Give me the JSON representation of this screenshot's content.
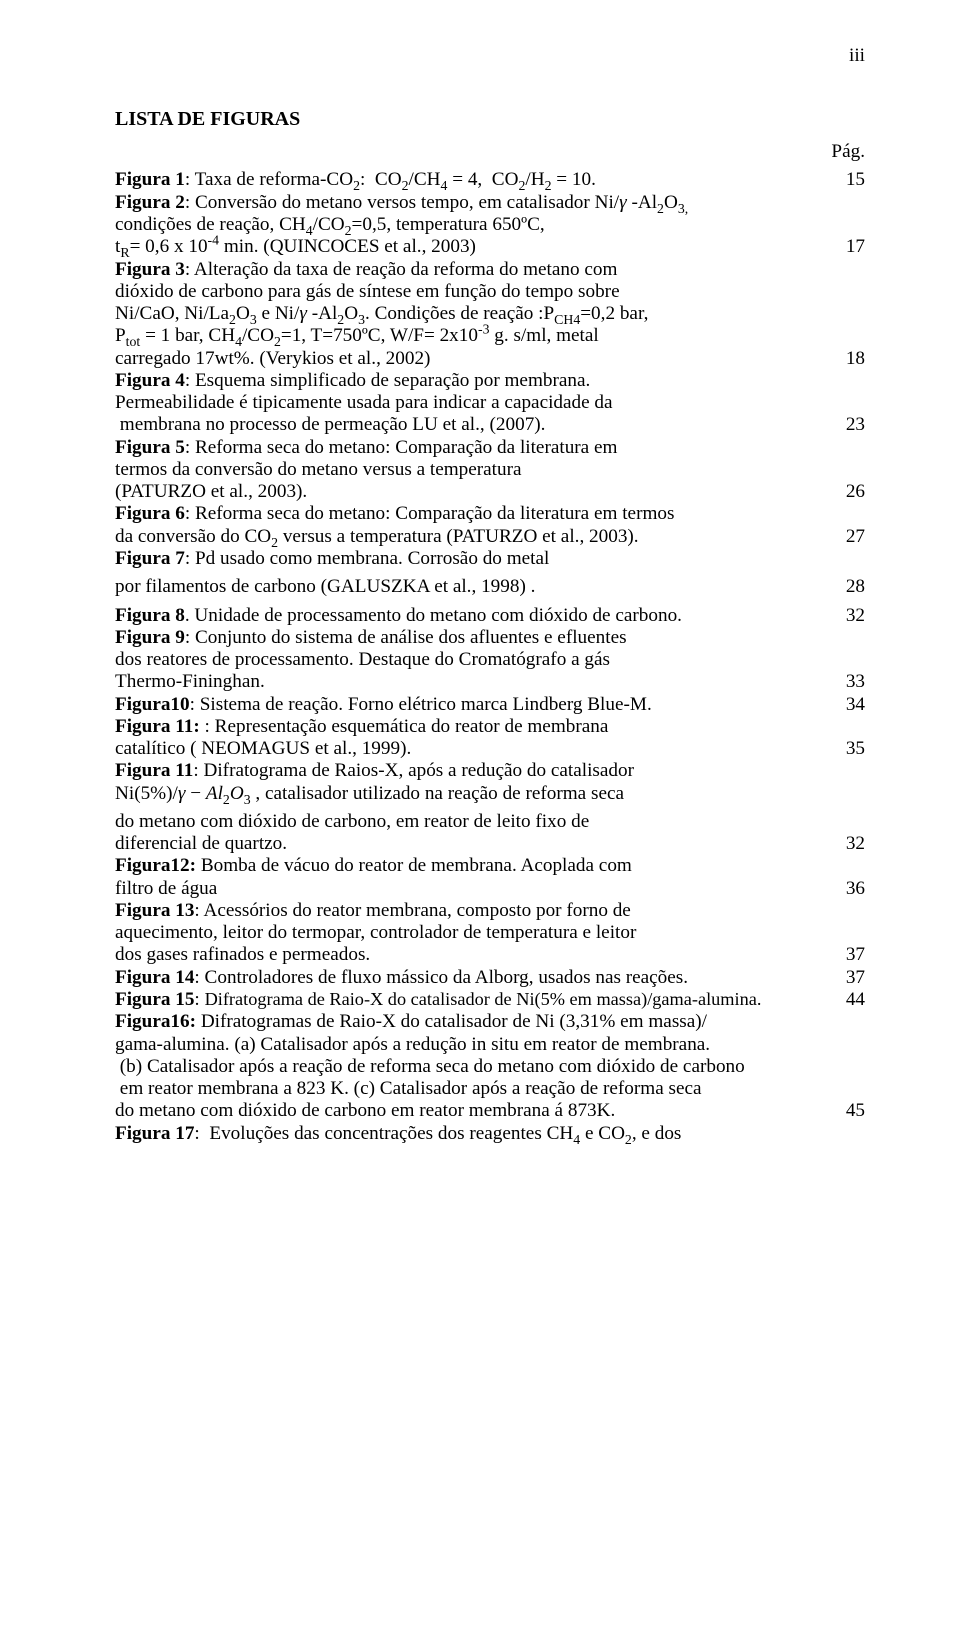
{
  "page_number_roman": "iii",
  "heading": "LISTA DE FIGURAS",
  "pag_label": "Pág.",
  "entries": [
    {
      "lines": [
        {
          "html": "<span class='bold'>Figura 1</span>: Taxa de reforma-CO<span class='sub'>2</span>:&nbsp; CO<span class='sub'>2</span>/CH<span class='sub'>4</span> = 4,&nbsp; CO<span class='sub'>2</span>/H<span class='sub'>2</span> = 10.",
          "page": "15"
        }
      ]
    },
    {
      "lines": [
        {
          "html": "<span class='bold'>Figura 2</span>: Conversão do metano versos tempo, em catalisador Ni/<span class='it'>&gamma;</span> -Al<span class='sub'>2</span>O<span class='sub'>3,</span>"
        },
        {
          "html": "condições de reação, CH<span class='sub'>4</span>/CO<span class='sub'>2</span>=0,5, temperatura 650ºC,"
        },
        {
          "html": "t<span class='sub'>R</span>= 0,6 x 10<span class='sup'>-4</span> min. (QUINCOCES et al., 2003)",
          "page": "17"
        }
      ]
    },
    {
      "lines": [
        {
          "html": "<span class='bold'>Figura 3</span>: Alteração da taxa de reação da reforma do metano com"
        },
        {
          "html": "dióxido de carbono para gás de síntese em função do tempo sobre"
        },
        {
          "html": "Ni/CaO, Ni/La<span class='sub'>2</span>O<span class='sub'>3</span> e Ni/<span class='it'>&gamma;</span> -Al<span class='sub'>2</span>O<span class='sub'>3</span>. Condições de reação :P<span class='sub'>CH4</span>=0,2 bar,"
        },
        {
          "html": "P<span class='sub'>tot</span> = 1 bar, CH<span class='sub'>4</span>/CO<span class='sub'>2</span>=1, T=750ºC, W/F= 2x10<span class='sup'>-3</span> g. s/ml, metal"
        },
        {
          "html": "carregado 17wt%. (Verykios et al., 2002)",
          "page": "18"
        }
      ]
    },
    {
      "lines": [
        {
          "html": "<span class='bold'>Figura 4</span>: Esquema simplificado de separação por membrana."
        },
        {
          "html": "Permeabilidade é tipicamente usada para indicar a capacidade da"
        },
        {
          "html": "&nbsp;membrana no processo de permeação LU et al., (2007).",
          "page": "23"
        }
      ]
    },
    {
      "lines": [
        {
          "html": "<span class='bold'>Figura 5</span>: Reforma seca do metano: Comparação da literatura em"
        },
        {
          "html": "termos da conversão do metano versus a temperatura"
        },
        {
          "html": "(PATURZO et al., 2003).",
          "page": "26"
        }
      ]
    },
    {
      "lines": [
        {
          "html": "<span class='bold'>Figura 6</span>: Reforma seca do metano: Comparação da literatura em termos"
        },
        {
          "html": "da conversão do CO<span class='sub'>2</span> versus a temperatura (PATURZO et al., 2003).",
          "page": "27"
        }
      ]
    },
    {
      "lines": [
        {
          "html": "<span class='bold'>Figura 7</span>: Pd usado como membrana. Corrosão do metal"
        },
        {
          "html": "por filamentos de carbono (GALUSZKA et al., 1998) .",
          "page": "28",
          "gap": true
        }
      ]
    },
    {
      "lines": [
        {
          "html": "<span class='bold'>Figura 8</span>. Unidade de processamento do metano com dióxido de carbono.",
          "page": "32",
          "gap": true
        }
      ]
    },
    {
      "lines": [
        {
          "html": "<span class='bold'>Figura 9</span>: Conjunto do sistema de análise dos afluentes e efluentes"
        },
        {
          "html": "dos reatores de processamento. Destaque do Cromatógrafo a gás"
        },
        {
          "html": "Thermo-Fininghan.",
          "page": "33"
        }
      ]
    },
    {
      "lines": [
        {
          "html": "<span class='bold'>Figura10</span>: Sistema de reação. Forno elétrico marca Lindberg Blue-M.",
          "page": "34"
        }
      ]
    },
    {
      "lines": [
        {
          "html": "<span class='bold'>Figura 11:</span> : Representação esquemática do reator de membrana"
        },
        {
          "html": "catalítico ( NEOMAGUS et al., 1999).",
          "page": "35"
        }
      ]
    },
    {
      "lines": [
        {
          "html": "<span class='bold'>Figura 11</span>: Difratograma de Raios-X, após a redução do catalisador"
        },
        {
          "html": "Ni(5%)/<span class='it'>&gamma;</span> &minus; <span class='it'>Al</span><span class='sub'>2</span><span class='it'>O</span><span class='sub'>3</span> , catalisador utilizado na reação de reforma seca"
        },
        {
          "html": "do metano com dióxido de carbono, em reator de leito fixo de",
          "gap": true
        },
        {
          "html": "diferencial de quartzo.",
          "page": "32"
        }
      ]
    },
    {
      "lines": [
        {
          "html": "<span class='bold'>Figura12:</span> Bomba de vácuo do reator de membrana. Acoplada com"
        },
        {
          "html": "filtro de água",
          "page": "36"
        }
      ]
    },
    {
      "lines": [
        {
          "html": "<span class='bold'>Figura 13</span>: Acessórios do reator membrana, composto por forno de"
        },
        {
          "html": "aquecimento, leitor do termopar, controlador de temperatura e leitor"
        },
        {
          "html": "dos gases rafinados e permeados.",
          "page": "37"
        }
      ]
    },
    {
      "lines": [
        {
          "html": "<span class='bold'>Figura 14</span>: Controladores de fluxo mássico da Alborg, usados nas reações.",
          "page": "37"
        }
      ]
    },
    {
      "lines": [
        {
          "html": "<span class='bold'>Figura 15</span>: <span style='font-size:18.3px;'>Difratograma de Raio-X do catalisador de Ni(5% em massa)/gama-alumina.</span>",
          "page": "44"
        }
      ]
    },
    {
      "lines": [
        {
          "html": "<span class='bold'>Figura16:</span> Difratogramas de Raio-X do catalisador de Ni (3,31% em massa)/"
        },
        {
          "html": "gama-alumina. (a) Catalisador após a redução in situ em reator de membrana."
        },
        {
          "html": "&nbsp;(b) Catalisador após a reação de reforma seca do metano com dióxido de carbono"
        },
        {
          "html": "&nbsp;em reator membrana a 823 K. (c) Catalisador após a reação de reforma seca"
        },
        {
          "html": "do metano com dióxido de carbono em reator membrana á 873K.",
          "page": "45"
        }
      ]
    },
    {
      "lines": [
        {
          "html": "<span class='bold'>Figura 17</span>:&nbsp; Evoluções das concentrações dos reagentes CH<span class='sub'>4</span> e CO<span class='sub'>2</span>, e dos"
        }
      ]
    }
  ]
}
